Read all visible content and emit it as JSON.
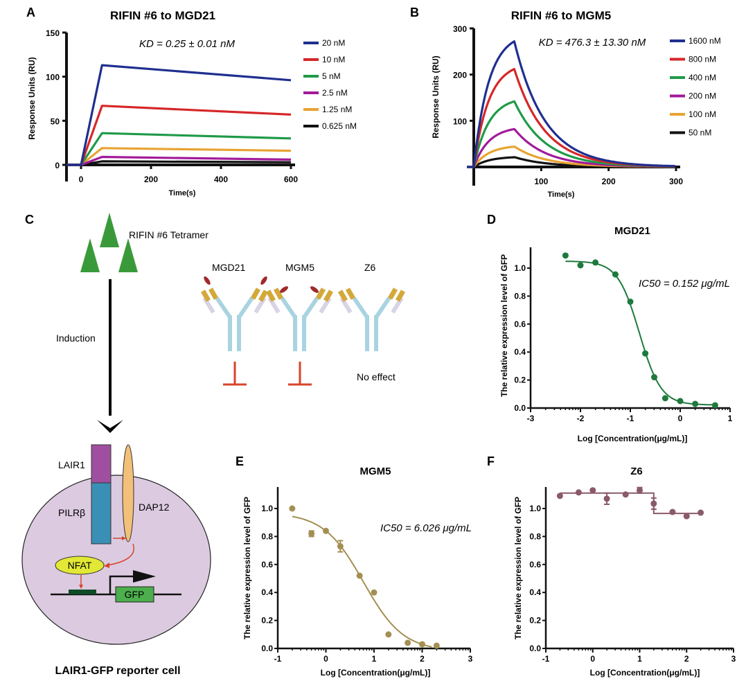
{
  "panels": {
    "A": "A",
    "B": "B",
    "C": "C",
    "D": "D",
    "E": "E",
    "F": "F"
  },
  "chart_data": [
    {
      "id": "A",
      "type": "line",
      "title": "RIFIN #6 to MGD21",
      "annotation": "KD = 0.25 ± 0.01 nM",
      "xlabel": "Time(s)",
      "ylabel": "Response Units (RU)",
      "xlim": [
        -40,
        600
      ],
      "ylim": [
        0,
        150
      ],
      "xticks": [
        "0",
        "200",
        "400",
        "600"
      ],
      "xtick_values": [
        0,
        200,
        400,
        600
      ],
      "yticks": [
        "0",
        "50",
        "100",
        "150"
      ],
      "ytick_values": [
        0,
        50,
        100,
        150
      ],
      "legend_position": "right",
      "series": [
        {
          "name": "20 nM",
          "color": "#1f2f8f",
          "points": [
            [
              -40,
              0
            ],
            [
              0,
              0
            ],
            [
              60,
              113
            ],
            [
              600,
              96
            ]
          ]
        },
        {
          "name": "10 nM",
          "color": "#d62728",
          "points": [
            [
              -40,
              0
            ],
            [
              0,
              0
            ],
            [
              60,
              67
            ],
            [
              600,
              57
            ]
          ]
        },
        {
          "name": "5 nM",
          "color": "#1f9a48",
          "points": [
            [
              -40,
              0
            ],
            [
              0,
              0
            ],
            [
              60,
              36
            ],
            [
              600,
              30
            ]
          ]
        },
        {
          "name": "2.5 nM",
          "color": "#a21a9a",
          "points": [
            [
              -40,
              0
            ],
            [
              0,
              0
            ],
            [
              60,
              9
            ],
            [
              600,
              6
            ]
          ]
        },
        {
          "name": "1.25 nM",
          "color": "#e8a332",
          "points": [
            [
              -40,
              0
            ],
            [
              0,
              0
            ],
            [
              60,
              19
            ],
            [
              600,
              16
            ]
          ]
        },
        {
          "name": "0.625 nM",
          "color": "#111111",
          "points": [
            [
              -40,
              0
            ],
            [
              0,
              0
            ],
            [
              60,
              4
            ],
            [
              600,
              3
            ]
          ]
        }
      ]
    },
    {
      "id": "B",
      "type": "line",
      "title": "RIFIN #6 to MGM5",
      "annotation": "KD = 476.3 ± 13.30 nM",
      "xlabel": "Time(s)",
      "ylabel": "Response Units (RU)",
      "xlim": [
        0,
        300
      ],
      "ylim": [
        0,
        300
      ],
      "xticks": [
        "100",
        "200",
        "300"
      ],
      "xtick_values": [
        100,
        200,
        300
      ],
      "yticks": [
        "100",
        "200",
        "300"
      ],
      "ytick_values": [
        100,
        200,
        300
      ],
      "legend_position": "right",
      "association_end": 60,
      "series": [
        {
          "name": "1600 nM",
          "color": "#1f2f8f",
          "peak": 272
        },
        {
          "name": "800 nM",
          "color": "#d62728",
          "peak": 212
        },
        {
          "name": "400 nM",
          "color": "#1f9a48",
          "peak": 142
        },
        {
          "name": "200 nM",
          "color": "#a21a9a",
          "peak": 82
        },
        {
          "name": "100 nM",
          "color": "#e8a332",
          "peak": 44
        },
        {
          "name": "50 nM",
          "color": "#111111",
          "peak": 21
        }
      ]
    },
    {
      "id": "D",
      "type": "scatter",
      "title": "MGD21",
      "annotation": "IC50 = 0.152 μg/mL",
      "xlabel": "Log [Concentration(μg/mL)]",
      "ylabel": "The relative expression level of GFP",
      "xlim": [
        -3,
        1
      ],
      "ylim": [
        0,
        1.15
      ],
      "xticks": [
        "-3",
        "-2",
        "-1",
        "0",
        "1"
      ],
      "xtick_values": [
        -3,
        -2,
        -1,
        0,
        1
      ],
      "yticks": [
        "0.0",
        "0.2",
        "0.4",
        "0.6",
        "0.8",
        "1.0"
      ],
      "ytick_values": [
        0,
        0.2,
        0.4,
        0.6,
        0.8,
        1.0
      ],
      "color": "#1e7a3c",
      "fit": {
        "top": 1.05,
        "bottom": 0.022,
        "logIC50": -0.818,
        "hill": -2.0,
        "x_range": [
          -2.3,
          0.7
        ]
      },
      "points": [
        {
          "x": -2.3,
          "y": 1.09
        },
        {
          "x": -2.0,
          "y": 1.02
        },
        {
          "x": -1.7,
          "y": 1.04
        },
        {
          "x": -1.3,
          "y": 0.955
        },
        {
          "x": -1.0,
          "y": 0.76
        },
        {
          "x": -0.7,
          "y": 0.39
        },
        {
          "x": -0.52,
          "y": 0.22
        },
        {
          "x": -0.3,
          "y": 0.07
        },
        {
          "x": 0.0,
          "y": 0.05
        },
        {
          "x": 0.3,
          "y": 0.03
        },
        {
          "x": 0.7,
          "y": 0.02
        }
      ]
    },
    {
      "id": "E",
      "type": "scatter",
      "title": "MGM5",
      "annotation": "IC50 = 6.026 μg/mL",
      "xlabel": "Log [Concentration(μg/mL)]",
      "ylabel": "The relative expression level of GFP",
      "xlim": [
        -1,
        3
      ],
      "ylim": [
        0,
        1.15
      ],
      "xticks": [
        "-1",
        "0",
        "1",
        "2",
        "3"
      ],
      "xtick_values": [
        -1,
        0,
        1,
        2,
        3
      ],
      "yticks": [
        "0.0",
        "0.2",
        "0.4",
        "0.6",
        "0.8",
        "1.0"
      ],
      "ytick_values": [
        0,
        0.2,
        0.4,
        0.6,
        0.8,
        1.0
      ],
      "color": "#a48f52",
      "fit": {
        "top": 0.97,
        "bottom": -0.02,
        "logIC50": 0.78,
        "hill": -1.05,
        "x_range": [
          -0.7,
          2.2
        ]
      },
      "points": [
        {
          "x": -0.7,
          "y": 1.0
        },
        {
          "x": -0.3,
          "y": 0.82,
          "err": 0.02
        },
        {
          "x": 0.0,
          "y": 0.84
        },
        {
          "x": 0.3,
          "y": 0.73,
          "err": 0.04
        },
        {
          "x": 0.7,
          "y": 0.52
        },
        {
          "x": 1.0,
          "y": 0.4
        },
        {
          "x": 1.3,
          "y": 0.1
        },
        {
          "x": 1.7,
          "y": 0.04
        },
        {
          "x": 2.0,
          "y": 0.03
        },
        {
          "x": 2.3,
          "y": 0.02
        }
      ]
    },
    {
      "id": "F",
      "type": "scatter",
      "title": "Z6",
      "annotation": "",
      "xlabel": "Log [Concentration(μg/mL)]",
      "ylabel": "The relative expression level of GFP",
      "xlim": [
        -1,
        3
      ],
      "ylim": [
        0,
        1.15
      ],
      "xticks": [
        "-1",
        "0",
        "1",
        "2",
        "3"
      ],
      "xtick_values": [
        -1,
        0,
        1,
        2,
        3
      ],
      "yticks": [
        "0.0",
        "0.2",
        "0.4",
        "0.6",
        "0.8",
        "1.0"
      ],
      "ytick_values": [
        0,
        0.2,
        0.4,
        0.6,
        0.8,
        1.0
      ],
      "color": "#8a5a6a",
      "fit": {
        "type": "step",
        "segments": [
          [
            -0.7,
            1.11,
            1.3
          ],
          [
            1.3,
            0.965,
            2.3
          ]
        ]
      },
      "points": [
        {
          "x": -0.7,
          "y": 1.09
        },
        {
          "x": -0.3,
          "y": 1.115
        },
        {
          "x": 0.0,
          "y": 1.13
        },
        {
          "x": 0.3,
          "y": 1.07,
          "err": 0.04
        },
        {
          "x": 0.7,
          "y": 1.1
        },
        {
          "x": 1.0,
          "y": 1.13,
          "err": 0.02
        },
        {
          "x": 1.3,
          "y": 1.035,
          "err": 0.04
        },
        {
          "x": 1.7,
          "y": 0.975
        },
        {
          "x": 2.0,
          "y": 0.945
        },
        {
          "x": 2.3,
          "y": 0.97
        }
      ]
    }
  ],
  "diagram": {
    "tetramer_label": "RIFIN #6 Tetramer",
    "induction_label": "Induction",
    "antibodies": [
      {
        "name": "MGD21",
        "effect": "inhibit"
      },
      {
        "name": "MGM5",
        "effect": "inhibit"
      },
      {
        "name": "Z6",
        "effect": "No effect"
      }
    ],
    "lair1_label": "LAIR1",
    "pilrb_label": "PILRβ",
    "dap12_label": "DAP12",
    "nfat_label": "NFAT",
    "gfp_label": "GFP",
    "cell_caption": "LAIR1-GFP reporter cell",
    "colors": {
      "tetramer": "#3a9a3a",
      "lair1": "#a04fa0",
      "pilrb": "#3a8fb5",
      "dap12": "#f2c078",
      "cell": "#dccbe0",
      "nfat": "#e2e835",
      "gfp": "#4cae4c",
      "promoter": "#0e4a25",
      "inhibit": "#d8432a",
      "antibody_heavy": "#a9d3e0",
      "antibody_light": "#d9d3e6",
      "antibody_var": "#d4a839",
      "epitope": "#a02a2a"
    }
  }
}
